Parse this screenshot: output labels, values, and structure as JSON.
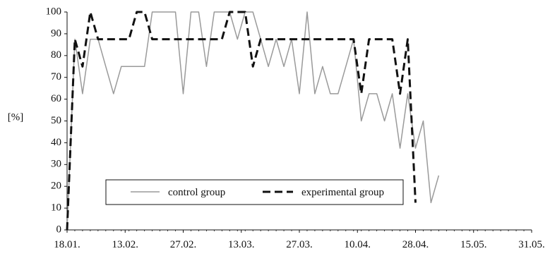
{
  "chart_data": {
    "type": "line",
    "title": "",
    "xlabel": "",
    "ylabel": "[%]",
    "ylim": [
      0,
      100
    ],
    "yticks": [
      0,
      10,
      20,
      30,
      40,
      50,
      60,
      70,
      80,
      90,
      100
    ],
    "xtick_labels": [
      "18.01.",
      "13.02.",
      "27.02.",
      "13.03.",
      "27.03.",
      "10.04.",
      "28.04.",
      "15.05.",
      "31.05."
    ],
    "grid": false,
    "legend_position": "lower-center",
    "point_count": 61,
    "series": [
      {
        "name": "control group",
        "color": "#9a9a9a",
        "style": "solid",
        "values": [
          0,
          87.5,
          62.5,
          87.5,
          87.5,
          75,
          62.5,
          75,
          75,
          75,
          75,
          100,
          100,
          100,
          100,
          62.5,
          100,
          100,
          75,
          100,
          100,
          100,
          87.5,
          100,
          100,
          87.5,
          75,
          87.5,
          75,
          87.5,
          62.5,
          100,
          62.5,
          75,
          62.5,
          62.5,
          75,
          87.5,
          50,
          62.5,
          62.5,
          50,
          62.5,
          37.5,
          62.5,
          37.5,
          50,
          12.5,
          25
        ]
      },
      {
        "name": "experimental group",
        "color": "#111111",
        "style": "dashed",
        "values": [
          0,
          87.5,
          75,
          100,
          87.5,
          87.5,
          87.5,
          87.5,
          87.5,
          100,
          100,
          87.5,
          87.5,
          87.5,
          87.5,
          87.5,
          87.5,
          87.5,
          87.5,
          87.5,
          87.5,
          100,
          100,
          100,
          75,
          87.5,
          87.5,
          87.5,
          87.5,
          87.5,
          87.5,
          87.5,
          87.5,
          87.5,
          87.5,
          87.5,
          87.5,
          87.5,
          62.5,
          87.5,
          87.5,
          87.5,
          87.5,
          62.5,
          87.5,
          12.5
        ]
      }
    ]
  }
}
